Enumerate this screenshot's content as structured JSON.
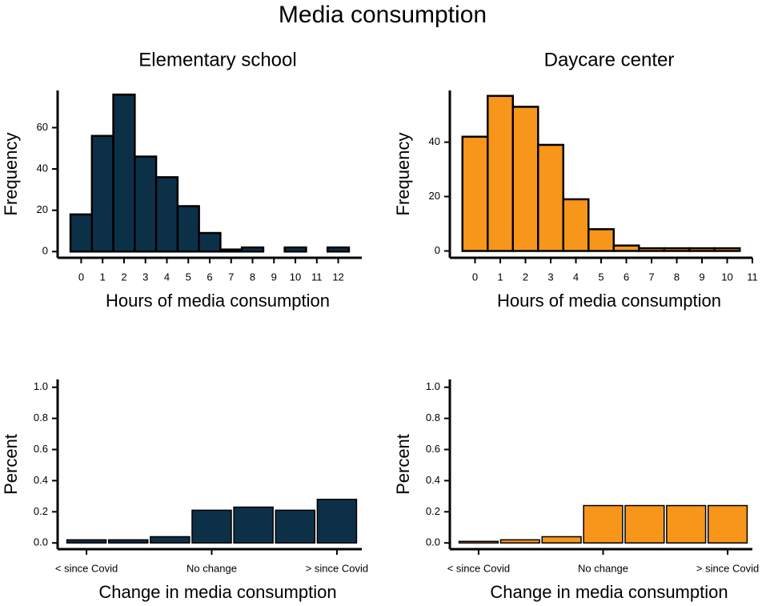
{
  "title": "Media consumption",
  "chart_data": [
    {
      "type": "histogram",
      "title": "Elementary school",
      "x_label": "Hours of media consumption",
      "y_label": "Frequency",
      "bins": [
        -0.5,
        0.5,
        1.5,
        2.5,
        3.5,
        4.5,
        5.5,
        6.5,
        7.5,
        8.5,
        9.5,
        10.5,
        11.5,
        12.5
      ],
      "values": [
        18,
        56,
        76,
        46,
        36,
        22,
        9,
        1,
        2,
        0,
        2,
        0,
        2
      ],
      "color": "#0d3049",
      "xlim": [
        -1.1,
        13.1
      ],
      "xticks": [
        0,
        1,
        2,
        3,
        4,
        5,
        6,
        7,
        8,
        9,
        10,
        11,
        12
      ],
      "ylim": [
        -3,
        78
      ],
      "yticks": [
        0,
        20,
        40,
        60
      ]
    },
    {
      "type": "histogram",
      "title": "Daycare center",
      "x_label": "Hours of media consumption",
      "y_label": "Frequency",
      "bins": [
        -0.5,
        0.5,
        1.5,
        2.5,
        3.5,
        4.5,
        5.5,
        6.5,
        7.5,
        8.5,
        9.5,
        10.5
      ],
      "values": [
        42,
        57,
        53,
        39,
        19,
        8,
        2,
        1,
        1,
        1,
        1
      ],
      "color": "#f7961a",
      "xlim": [
        -1,
        11
      ],
      "xticks": [
        0,
        1,
        2,
        3,
        4,
        5,
        6,
        7,
        8,
        9,
        10,
        11
      ],
      "ylim": [
        -2.5,
        59
      ],
      "yticks": [
        0,
        20,
        40
      ]
    },
    {
      "type": "bar",
      "x_label": "Change in media consumption",
      "y_label": "Percent",
      "categories": [
        "< since Covid",
        null,
        null,
        "No change",
        null,
        null,
        "> since Covid"
      ],
      "values": [
        0.02,
        0.02,
        0.04,
        0.21,
        0.23,
        0.21,
        0.28
      ],
      "color": "#0d3049",
      "ylim": [
        -0.04,
        1.05
      ],
      "yticks": [
        {
          "value": 0,
          "label": "0.0"
        },
        0.2,
        0.4,
        0.6,
        0.8,
        {
          "value": 1,
          "label": "1.0"
        }
      ]
    },
    {
      "type": "bar",
      "x_label": "Change in media consumption",
      "y_label": "Percent",
      "categories": [
        "< since Covid",
        null,
        null,
        "No change",
        null,
        null,
        "> since Covid"
      ],
      "values": [
        0.01,
        0.02,
        0.04,
        0.24,
        0.24,
        0.24,
        0.24
      ],
      "color": "#f7961a",
      "ylim": [
        -0.04,
        1.05
      ],
      "yticks": [
        {
          "value": 0,
          "label": "0.0"
        },
        0.2,
        0.4,
        0.6,
        0.8,
        {
          "value": 1,
          "label": "1.0"
        }
      ]
    }
  ]
}
